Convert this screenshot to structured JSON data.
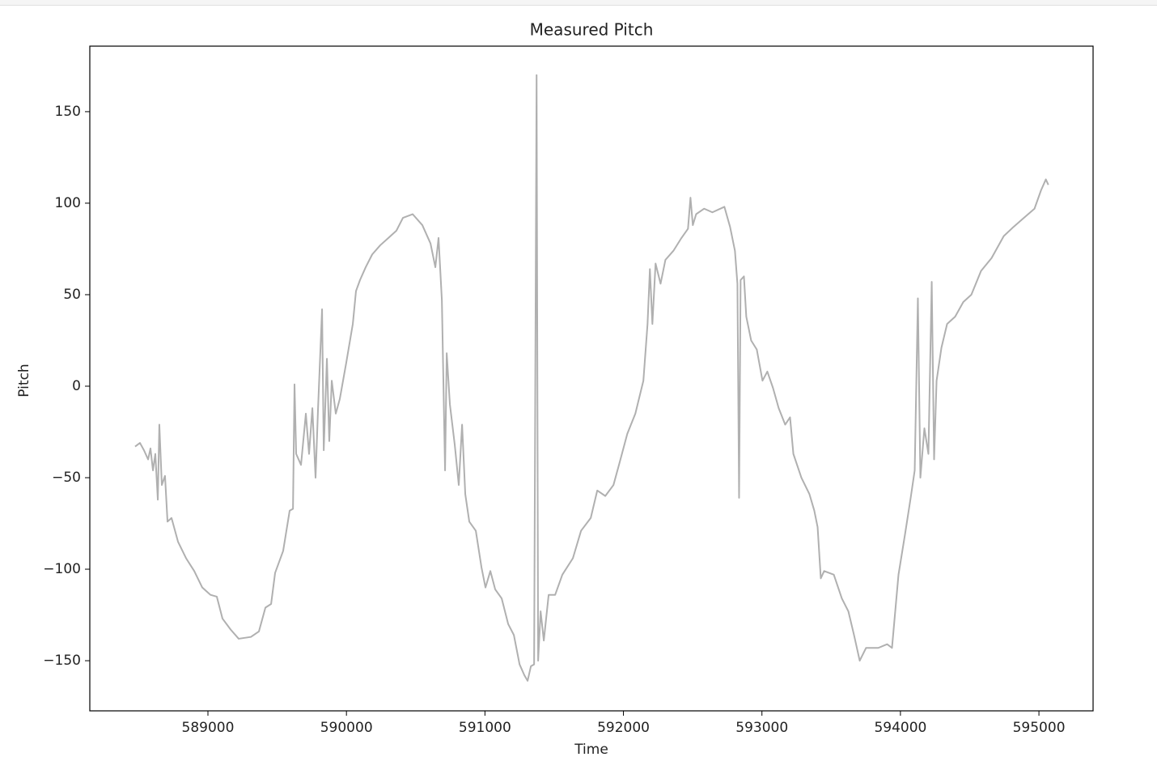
{
  "chart_data": {
    "type": "line",
    "title": "Measured Pitch",
    "x_label": "Time",
    "y_label": "Pitch",
    "color": "#b0b0b0",
    "grid": false,
    "xlim": [
      588147,
      595391
    ],
    "ylim": [
      -177.4,
      185.8
    ],
    "xticks": [
      589000,
      590000,
      591000,
      592000,
      593000,
      594000,
      595000
    ],
    "yticks": [
      {
        "value": -150,
        "label": "−150"
      },
      {
        "value": -100,
        "label": "−100"
      },
      {
        "value": -50,
        "label": "−50"
      },
      0,
      50,
      100,
      150
    ],
    "x": [
      588474,
      588509,
      588538,
      588568,
      588585,
      588603,
      588620,
      588638,
      588649,
      588667,
      588690,
      588708,
      588737,
      588784,
      588842,
      588901,
      588959,
      589018,
      589064,
      589105,
      589164,
      589222,
      589310,
      589368,
      589415,
      589456,
      589485,
      589543,
      589590,
      589614,
      589625,
      589637,
      589672,
      589707,
      589730,
      589754,
      589777,
      589795,
      589824,
      589836,
      589859,
      589876,
      589894,
      589923,
      589952,
      589999,
      590046,
      590069,
      590098,
      590139,
      590186,
      590244,
      590303,
      590361,
      590408,
      590478,
      590548,
      590607,
      590642,
      590665,
      590689,
      590712,
      590724,
      590747,
      590782,
      590811,
      590835,
      590858,
      590887,
      590934,
      590975,
      591004,
      591039,
      591074,
      591121,
      591168,
      591209,
      591250,
      591285,
      591308,
      591332,
      591355,
      591373,
      591384,
      591402,
      591425,
      591460,
      591507,
      591559,
      591635,
      591694,
      591764,
      591811,
      591869,
      591928,
      591975,
      592028,
      592086,
      592144,
      592174,
      592191,
      592209,
      592232,
      592268,
      592303,
      592361,
      592419,
      592466,
      592484,
      592501,
      592525,
      592583,
      592642,
      592729,
      592770,
      592805,
      592823,
      592835,
      592846,
      592870,
      592887,
      592922,
      592963,
      593004,
      593039,
      593080,
      593121,
      593168,
      593203,
      593227,
      593285,
      593343,
      593378,
      593402,
      593425,
      593449,
      593519,
      593577,
      593624,
      593665,
      593706,
      593752,
      593840,
      593904,
      593939,
      593986,
      594033,
      594074,
      594103,
      594126,
      594144,
      594173,
      594202,
      594226,
      594243,
      594261,
      594296,
      594337,
      594395,
      594454,
      594512,
      594582,
      594658,
      594746,
      594816,
      594892,
      594968,
      595015,
      595050,
      595068
    ],
    "values": [
      -33,
      -31,
      -35,
      -40,
      -34,
      -46,
      -37,
      -62,
      -21,
      -54,
      -49,
      -74,
      -72,
      -85,
      -94,
      -101,
      -110,
      -114,
      -115,
      -127,
      -133,
      -138,
      -137,
      -134,
      -121,
      -119,
      -102,
      -90,
      -68,
      -67,
      1,
      -37,
      -43,
      -15,
      -37,
      -12,
      -50,
      -12,
      42,
      -35,
      15,
      -30,
      3,
      -15,
      -7,
      13,
      34,
      52,
      58,
      65,
      72,
      77,
      81,
      85,
      92,
      94,
      88,
      78,
      65,
      81,
      47,
      -46,
      18,
      -10,
      -32,
      -54,
      -21,
      -59,
      -74,
      -79,
      -99,
      -110,
      -101,
      -111,
      -116,
      -130,
      -136,
      -152,
      -158,
      -161,
      -153,
      -152,
      170,
      -150,
      -123,
      -139,
      -114,
      -114,
      -103,
      -94,
      -79,
      -72,
      -57,
      -60,
      -54,
      -41,
      -26,
      -15,
      3,
      34,
      64,
      34,
      67,
      56,
      69,
      74,
      81,
      86,
      103,
      88,
      94,
      97,
      95,
      98,
      87,
      74,
      56,
      -61,
      58,
      60,
      38,
      25,
      20,
      3,
      8,
      -1,
      -12,
      -21,
      -17,
      -37,
      -50,
      -59,
      -68,
      -77,
      -105,
      -101,
      -103,
      -116,
      -123,
      -136,
      -150,
      -143,
      -143,
      -141,
      -143,
      -103,
      -81,
      -61,
      -46,
      48,
      -50,
      -23,
      -37,
      57,
      -40,
      3,
      21,
      34,
      38,
      46,
      50,
      63,
      70,
      82,
      87,
      92,
      97,
      107,
      113,
      110
    ]
  }
}
